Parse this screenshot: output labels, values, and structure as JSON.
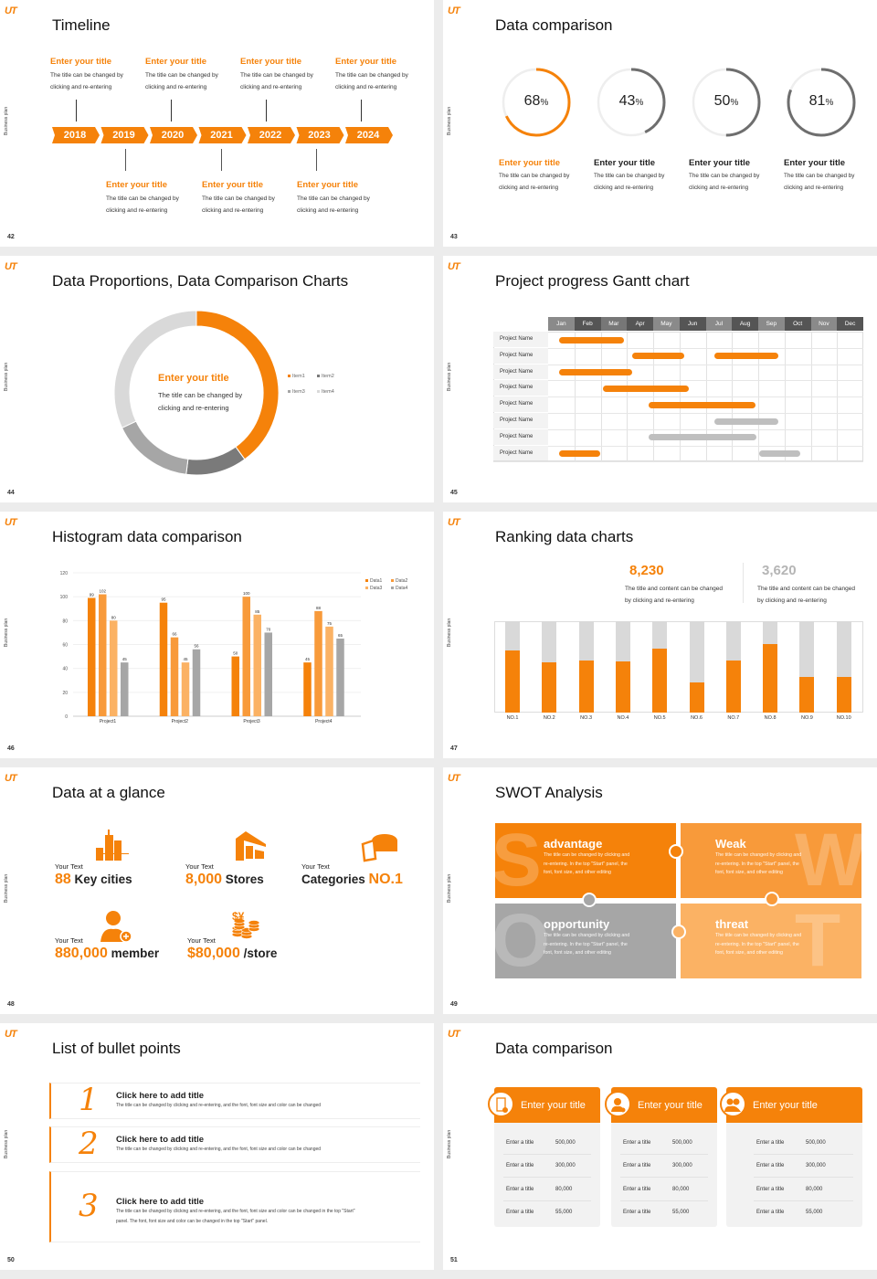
{
  "common": {
    "logo": "UT",
    "side_text": "Business plan"
  },
  "colors": {
    "orange": "#f5820a",
    "orange2": "#f89a3a",
    "orange3": "#fbb264",
    "gray": "#a6a6a6",
    "dark_gray": "#6e6e6e",
    "light_gray": "#d9d9d9"
  },
  "slides": [
    {
      "page": "42",
      "title": "Timeline",
      "years": [
        "2018",
        "2019",
        "2020",
        "2021",
        "2022",
        "2023",
        "2024"
      ],
      "top_items": [
        {
          "title": "Enter your title",
          "text": [
            "The title can be changed by",
            "clicking and re-entering"
          ]
        },
        {
          "title": "Enter your title",
          "text": [
            "The title can be changed by",
            "clicking and re-entering"
          ]
        },
        {
          "title": "Enter your title",
          "text": [
            "The title can be changed by",
            "clicking and re-entering"
          ]
        },
        {
          "title": "Enter your title",
          "text": [
            "The title can be changed by",
            "clicking and re-entering"
          ]
        }
      ],
      "bottom_items": [
        {
          "title": "Enter your title",
          "text": [
            "The title can be changed by",
            "clicking and re-entering"
          ]
        },
        {
          "title": "Enter your title",
          "text": [
            "The title can be changed by",
            "clicking and re-entering"
          ]
        },
        {
          "title": "Enter your title",
          "text": [
            "The title can be changed by",
            "clicking and re-entering"
          ]
        }
      ]
    },
    {
      "page": "43",
      "title": "Data comparison",
      "rings": [
        {
          "value": 68,
          "label": "68",
          "unit": "%",
          "highlight": true,
          "title": "Enter your title",
          "text": [
            "The title can be changed by",
            "clicking and re-entering"
          ]
        },
        {
          "value": 43,
          "label": "43",
          "unit": "%",
          "highlight": false,
          "title": "Enter your title",
          "text": [
            "The title can be changed by",
            "clicking and re-entering"
          ]
        },
        {
          "value": 50,
          "label": "50",
          "unit": "%",
          "highlight": false,
          "title": "Enter your title",
          "text": [
            "The title can be changed by",
            "clicking and re-entering"
          ]
        },
        {
          "value": 81,
          "label": "81",
          "unit": "%",
          "highlight": false,
          "title": "Enter your title",
          "text": [
            "The title can be changed by",
            "clicking and re-entering"
          ]
        }
      ]
    },
    {
      "page": "44",
      "title": "Data Proportions, Data Comparison Charts",
      "center_title": "Enter your title",
      "center_text": [
        "The title can be changed by",
        "clicking and re-entering"
      ]
    },
    {
      "page": "45",
      "title": "Project progress Gantt chart",
      "months": [
        "Jan",
        "Feb",
        "Mar",
        "Apr",
        "May",
        "Jun",
        "Jul",
        "Aug",
        "Sep",
        "Oct",
        "Nov",
        "Dec"
      ],
      "rows": [
        {
          "name": "Project Name",
          "bars": [
            {
              "start": 0.43,
              "end": 2.87,
              "status": "active"
            }
          ]
        },
        {
          "name": "Project Name",
          "bars": [
            {
              "start": 3.2,
              "end": 5.17,
              "status": "active"
            },
            {
              "start": 6.33,
              "end": 8.78,
              "status": "active"
            }
          ]
        },
        {
          "name": "Project Name",
          "bars": [
            {
              "start": 0.43,
              "end": 3.2,
              "status": "active"
            }
          ]
        },
        {
          "name": "Project Name",
          "bars": [
            {
              "start": 2.1,
              "end": 5.35,
              "status": "active"
            }
          ]
        },
        {
          "name": "Project Name",
          "bars": [
            {
              "start": 3.84,
              "end": 7.9,
              "status": "active"
            }
          ]
        },
        {
          "name": "Project Name",
          "bars": [
            {
              "start": 6.33,
              "end": 8.78,
              "status": "planned"
            }
          ]
        },
        {
          "name": "Project Name",
          "bars": [
            {
              "start": 3.84,
              "end": 7.93,
              "status": "planned"
            }
          ]
        },
        {
          "name": "Project Name",
          "bars": [
            {
              "start": 0.43,
              "end": 2.0,
              "status": "active"
            },
            {
              "start": 8.03,
              "end": 9.6,
              "status": "planned"
            }
          ]
        }
      ]
    },
    {
      "page": "46",
      "title": "Histogram data comparison"
    },
    {
      "page": "47",
      "title": "Ranking data charts",
      "stats": [
        {
          "value": "8,230",
          "text": [
            "The title and content can be changed",
            "by clicking and re-entering"
          ],
          "highlight": true
        },
        {
          "value": "3,620",
          "text": [
            "The title and content can be changed",
            "by clicking and re-entering"
          ],
          "highlight": false
        }
      ]
    },
    {
      "page": "48",
      "title": "Data at a glance",
      "items": [
        {
          "label": "Your Text",
          "number": "88",
          "suffix": "Key cities",
          "icon": "city-buildings-icon"
        },
        {
          "label": "Your Text",
          "number": "8,000",
          "suffix": "Stores",
          "icon": "store-icon"
        },
        {
          "label": "Your Text",
          "prefix": "Categories",
          "number": "NO.1",
          "icon": "pie-3d-icon"
        },
        {
          "label": "Your Text",
          "number": "880,000",
          "suffix": "member",
          "icon": "add-member-icon"
        },
        {
          "label": "Your Text",
          "number": "$80,000",
          "suffix": "/store",
          "icon": "coins-currency-icon"
        }
      ]
    },
    {
      "page": "49",
      "title": "SWOT Analysis",
      "quadrants": [
        {
          "letter": "S",
          "title": "advantage",
          "text": [
            "The title can be changed by clicking and",
            "re-entering. In the top \"Start\" panel, the",
            "font, font size, and other editing"
          ],
          "color": "#f5820a"
        },
        {
          "letter": "W",
          "title": "Weak",
          "text": [
            "The title can be changed by clicking and",
            "re-entering. In the top \"Start\" panel, the",
            "font, font size, and other editing"
          ],
          "color": "#f89a3a"
        },
        {
          "letter": "O",
          "title": "opportunity",
          "text": [
            "The title can be changed by clicking and",
            "re-entering. In the top \"Start\" panel, the",
            "font, font size, and other editing"
          ],
          "color": "#a6a6a6"
        },
        {
          "letter": "T",
          "title": "threat",
          "text": [
            "The title can be changed by clicking and",
            "re-entering. In the top \"Start\" panel, the",
            "font, font size, and other editing"
          ],
          "color": "#fbb264"
        }
      ]
    },
    {
      "page": "50",
      "title": "List of bullet points",
      "bullets": [
        {
          "num": "1",
          "title": "Click here to add title",
          "text": [
            "The title can be changed by clicking and re-entering, and the font, font size and color can be changed"
          ]
        },
        {
          "num": "2",
          "title": "Click here to add title",
          "text": [
            "The title can be changed by clicking and re-entering, and the font, font size and color can be changed"
          ]
        },
        {
          "num": "3",
          "title": "Click here to add title",
          "text": [
            "The title can be changed by clicking and re-entering, and the font, font size and color can be changed in the top \"Start\"",
            "panel. The font, font size and color can be changed in the top \"Start\" panel."
          ]
        }
      ]
    },
    {
      "page": "51",
      "title": "Data comparison",
      "cards": [
        {
          "title": "Enter your title",
          "icon": "tablet-user-icon",
          "rows": [
            [
              "Enter a title",
              "500,000"
            ],
            [
              "Enter a title",
              "300,000"
            ],
            [
              "Enter a title",
              "80,000"
            ],
            [
              "Enter a title",
              "55,000"
            ]
          ]
        },
        {
          "title": "Enter your title",
          "icon": "user-add-icon",
          "rows": [
            [
              "Enter a title",
              "500,000"
            ],
            [
              "Enter a title",
              "300,000"
            ],
            [
              "Enter a title",
              "80,000"
            ],
            [
              "Enter a title",
              "55,000"
            ]
          ]
        },
        {
          "title": "Enter your title",
          "icon": "users-group-icon",
          "rows": [
            [
              "Enter a title",
              "500,000"
            ],
            [
              "Enter a title",
              "300,000"
            ],
            [
              "Enter a title",
              "80,000"
            ],
            [
              "Enter a title",
              "55,000"
            ]
          ]
        }
      ]
    }
  ],
  "chart_data": [
    {
      "type": "pie",
      "variant": "donut",
      "categories": [
        "Item1",
        "Item2",
        "Item3",
        "Item4"
      ],
      "values": [
        40,
        12,
        16,
        32
      ],
      "colors": [
        "#f5820a",
        "#7a7a7a",
        "#a6a6a6",
        "#d9d9d9"
      ],
      "legend": "right"
    },
    {
      "type": "bar",
      "categories": [
        "Project1",
        "Project2",
        "Project3",
        "Project4"
      ],
      "series": [
        {
          "name": "Data1",
          "values": [
            99,
            95,
            50,
            45
          ],
          "color": "#f5820a"
        },
        {
          "name": "Data2",
          "values": [
            102,
            66,
            100,
            88
          ],
          "color": "#f89a3a"
        },
        {
          "name": "Data3",
          "values": [
            80,
            45,
            85,
            75
          ],
          "color": "#fbb264"
        },
        {
          "name": "Data4",
          "values": [
            45,
            56,
            70,
            65
          ],
          "color": "#a6a6a6"
        }
      ],
      "ylim": [
        0,
        120
      ],
      "yticks": [
        0,
        20,
        40,
        60,
        80,
        100,
        120
      ],
      "grid": true,
      "legend": "top-right",
      "data_labels": true
    },
    {
      "type": "bar",
      "variant": "stacked-percent",
      "categories": [
        "NO.1",
        "NO.2",
        "NO.3",
        "NO.4",
        "NO.5",
        "NO.6",
        "NO.7",
        "NO.8",
        "NO.9",
        "NO.10"
      ],
      "values": [
        0.68,
        0.55,
        0.57,
        0.56,
        0.7,
        0.33,
        0.57,
        0.75,
        0.39,
        0.39
      ],
      "ylim": [
        0,
        1
      ]
    }
  ]
}
